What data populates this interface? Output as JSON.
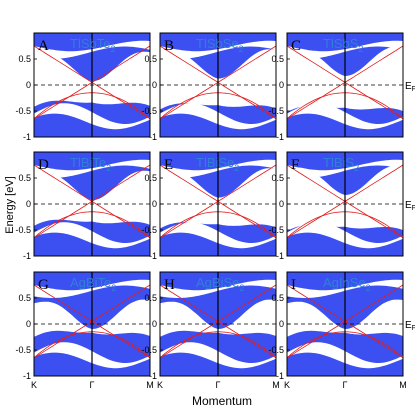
{
  "figure": {
    "y_axis_label": "Energy [eV]",
    "x_axis_label": "Momentum",
    "y_tick_labels": [
      "0.5",
      "0",
      "-0.5",
      "-1"
    ],
    "k_point_labels": [
      "K",
      "Γ",
      "M"
    ],
    "fermi_label": "E",
    "fermi_subscript": "F",
    "colors": {
      "bulk_bands": "#3c50f2",
      "surface_states": "#e21d1d",
      "title_text": "#2f7fd8",
      "fermi_line": "#000000"
    }
  },
  "chart_data": {
    "type": "band-structure",
    "ylabel": "Energy [eV]",
    "xlabel": "Momentum",
    "ylim": [
      -1,
      1
    ],
    "x_ticks": [
      "K",
      "Γ",
      "M"
    ],
    "fermi_level_ev": 0,
    "panels": [
      {
        "label": "A",
        "compound": "TlSbTe",
        "subscript": "2"
      },
      {
        "label": "B",
        "compound": "TlSbSe",
        "subscript": "2"
      },
      {
        "label": "C",
        "compound": "TlSbS",
        "subscript": "2"
      },
      {
        "label": "D",
        "compound": "TlBiTe",
        "subscript": "2"
      },
      {
        "label": "E",
        "compound": "TlBiSe",
        "subscript": "2"
      },
      {
        "label": "F",
        "compound": "TlBiS",
        "subscript": "2"
      },
      {
        "label": "G",
        "compound": "AgBiTe",
        "subscript": "2"
      },
      {
        "label": "H",
        "compound": "AgBiSe",
        "subscript": "2"
      },
      {
        "label": "I",
        "compound": "AgInSe",
        "subscript": "2"
      }
    ]
  }
}
